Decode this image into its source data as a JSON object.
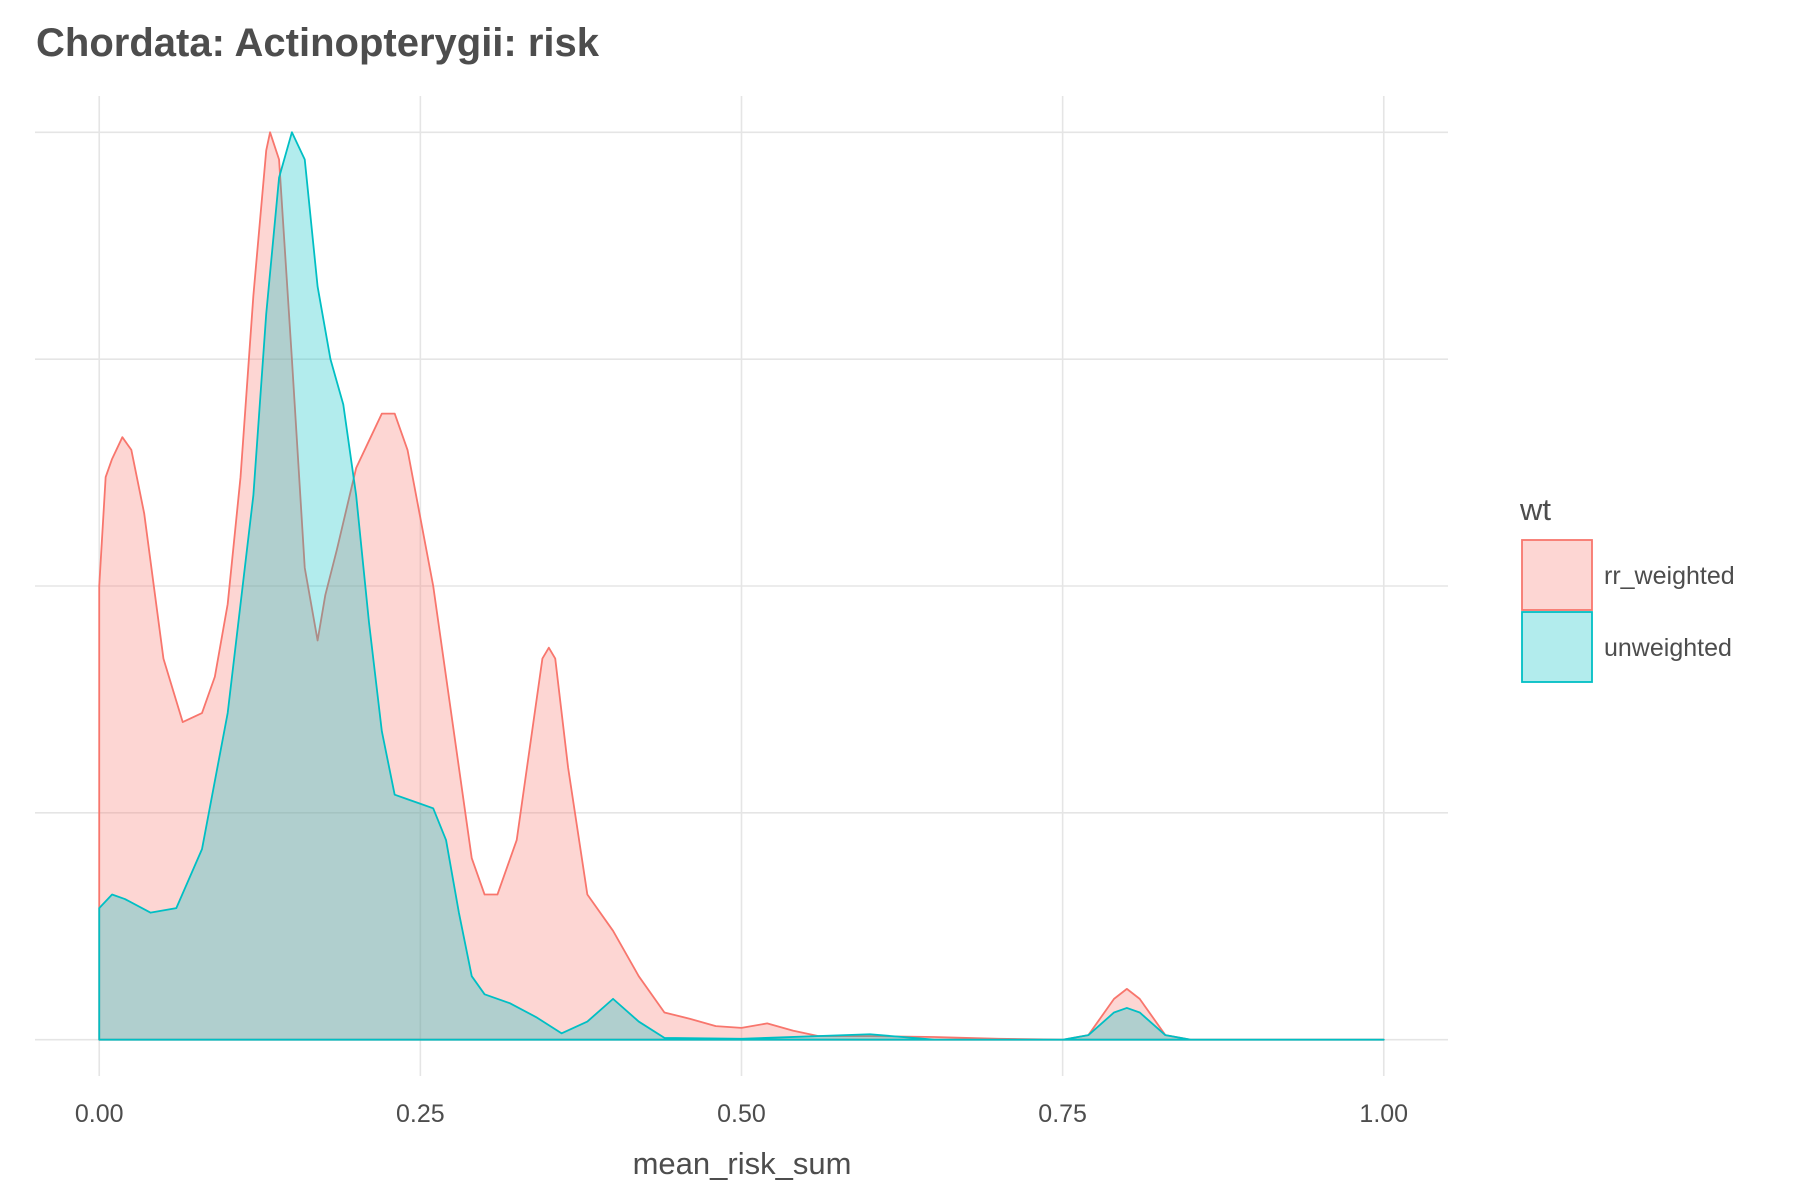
{
  "chart_data": {
    "type": "area",
    "title": "Chordata: Actinopterygii: risk",
    "xlabel": "mean_risk_sum",
    "ylabel": "",
    "xlim": [
      0,
      1
    ],
    "ylim": [
      -0.04,
      1.04
    ],
    "x_ticks": [
      "0.00",
      "0.25",
      "0.50",
      "0.75",
      "1.00"
    ],
    "x_tick_values": [
      0,
      0.25,
      0.5,
      0.75,
      1.0
    ],
    "y_gridlines": [
      0,
      0.25,
      0.5,
      0.75,
      1.0
    ],
    "y_ticks_shown": false,
    "grid": true,
    "legend": {
      "title": "wt",
      "placement": "right",
      "entries": [
        "rr_weighted",
        "unweighted"
      ]
    },
    "series": [
      {
        "name": "rr_weighted",
        "line_color": "#F8766D",
        "fill_color": "#F8766D",
        "fill_opacity": 0.3,
        "points": [
          [
            0.0,
            0.0
          ],
          [
            0.0,
            0.5
          ],
          [
            0.005,
            0.62
          ],
          [
            0.01,
            0.64
          ],
          [
            0.018,
            0.664
          ],
          [
            0.025,
            0.65
          ],
          [
            0.035,
            0.58
          ],
          [
            0.05,
            0.42
          ],
          [
            0.065,
            0.35
          ],
          [
            0.08,
            0.36
          ],
          [
            0.09,
            0.4
          ],
          [
            0.1,
            0.48
          ],
          [
            0.11,
            0.62
          ],
          [
            0.12,
            0.82
          ],
          [
            0.13,
            0.98
          ],
          [
            0.133,
            1.0
          ],
          [
            0.14,
            0.97
          ],
          [
            0.15,
            0.75
          ],
          [
            0.16,
            0.52
          ],
          [
            0.17,
            0.44
          ],
          [
            0.176,
            0.49
          ],
          [
            0.185,
            0.54
          ],
          [
            0.2,
            0.63
          ],
          [
            0.21,
            0.66
          ],
          [
            0.22,
            0.69
          ],
          [
            0.23,
            0.69
          ],
          [
            0.24,
            0.65
          ],
          [
            0.26,
            0.5
          ],
          [
            0.28,
            0.3
          ],
          [
            0.29,
            0.2
          ],
          [
            0.3,
            0.16
          ],
          [
            0.31,
            0.16
          ],
          [
            0.325,
            0.22
          ],
          [
            0.335,
            0.32
          ],
          [
            0.345,
            0.42
          ],
          [
            0.35,
            0.432
          ],
          [
            0.355,
            0.42
          ],
          [
            0.365,
            0.3
          ],
          [
            0.38,
            0.16
          ],
          [
            0.4,
            0.12
          ],
          [
            0.42,
            0.07
          ],
          [
            0.44,
            0.03
          ],
          [
            0.46,
            0.023
          ],
          [
            0.48,
            0.015
          ],
          [
            0.5,
            0.013
          ],
          [
            0.52,
            0.018
          ],
          [
            0.54,
            0.01
          ],
          [
            0.56,
            0.004
          ],
          [
            0.6,
            0.004
          ],
          [
            0.65,
            0.003
          ],
          [
            0.7,
            0.001
          ],
          [
            0.75,
            0.0
          ],
          [
            0.77,
            0.005
          ],
          [
            0.79,
            0.045
          ],
          [
            0.8,
            0.056
          ],
          [
            0.81,
            0.045
          ],
          [
            0.83,
            0.005
          ],
          [
            0.85,
            0.0
          ],
          [
            1.0,
            0.0
          ],
          [
            1.0,
            0.0
          ]
        ]
      },
      {
        "name": "unweighted",
        "line_color": "#00BFC4",
        "fill_color": "#00BFC4",
        "fill_opacity": 0.3,
        "points": [
          [
            0.0,
            0.0
          ],
          [
            0.0,
            0.145
          ],
          [
            0.01,
            0.16
          ],
          [
            0.02,
            0.155
          ],
          [
            0.04,
            0.14
          ],
          [
            0.06,
            0.145
          ],
          [
            0.08,
            0.21
          ],
          [
            0.1,
            0.36
          ],
          [
            0.12,
            0.6
          ],
          [
            0.13,
            0.8
          ],
          [
            0.14,
            0.95
          ],
          [
            0.15,
            1.0
          ],
          [
            0.16,
            0.97
          ],
          [
            0.17,
            0.83
          ],
          [
            0.18,
            0.75
          ],
          [
            0.19,
            0.7
          ],
          [
            0.2,
            0.6
          ],
          [
            0.21,
            0.46
          ],
          [
            0.22,
            0.34
          ],
          [
            0.23,
            0.27
          ],
          [
            0.24,
            0.265
          ],
          [
            0.25,
            0.26
          ],
          [
            0.26,
            0.255
          ],
          [
            0.27,
            0.22
          ],
          [
            0.28,
            0.14
          ],
          [
            0.29,
            0.07
          ],
          [
            0.3,
            0.05
          ],
          [
            0.32,
            0.04
          ],
          [
            0.34,
            0.025
          ],
          [
            0.36,
            0.007
          ],
          [
            0.38,
            0.02
          ],
          [
            0.4,
            0.045
          ],
          [
            0.42,
            0.02
          ],
          [
            0.44,
            0.002
          ],
          [
            0.5,
            0.001
          ],
          [
            0.6,
            0.006
          ],
          [
            0.65,
            0.0
          ],
          [
            0.75,
            0.0
          ],
          [
            0.77,
            0.005
          ],
          [
            0.79,
            0.03
          ],
          [
            0.8,
            0.035
          ],
          [
            0.81,
            0.03
          ],
          [
            0.83,
            0.005
          ],
          [
            0.85,
            0.0
          ],
          [
            1.0,
            0.0
          ],
          [
            1.0,
            0.0
          ]
        ]
      }
    ]
  }
}
